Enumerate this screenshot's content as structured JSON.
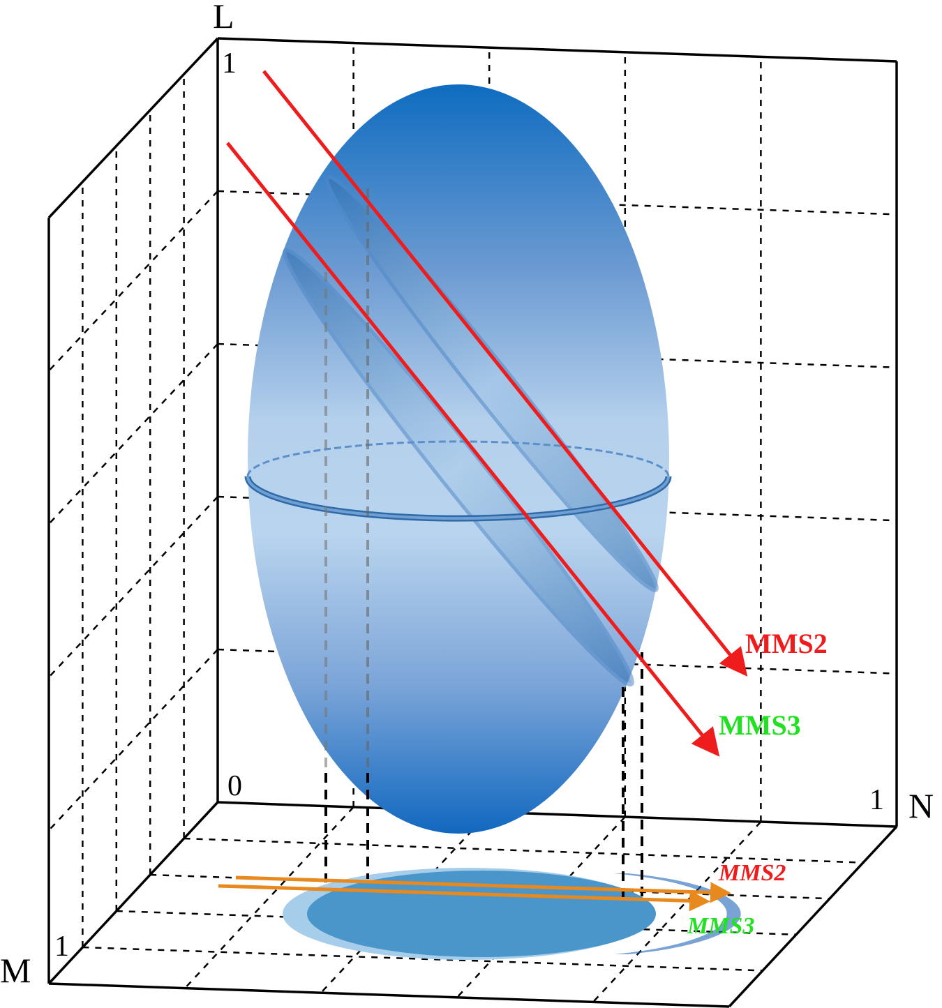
{
  "axes": {
    "l": "L",
    "m": "M",
    "n": "N"
  },
  "ticks": {
    "l_max": "1",
    "origin": "0",
    "n_max": "1",
    "m_max": "1"
  },
  "trajectories": [
    {
      "label": "MMS2"
    },
    {
      "label": "MMS3"
    }
  ],
  "projection": {
    "trajectories": [
      {
        "label": "MMS2"
      },
      {
        "label": "MMS3"
      }
    ]
  }
}
